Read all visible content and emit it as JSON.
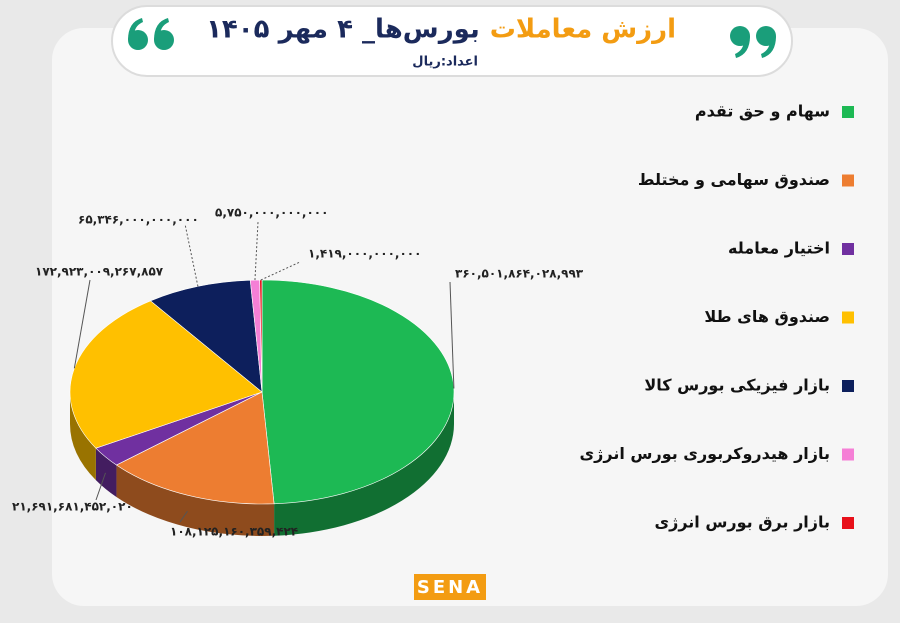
{
  "chart_data": {
    "type": "pie3d",
    "title": [
      "ارزش معاملات",
      "بورس‌ها_ ۴ مهر ۱۴۰۵"
    ],
    "subtitle": "اعداد:ریال",
    "categories": [
      "سهام و حق تقدم",
      "صندوق سهامی و مختلط",
      "اختیار معامله",
      "صندوق های طلا",
      "بازار فیزیکی بورس کالا",
      "بازار هیدروکربوری بورس انرژی",
      "بازار برق بورس انرژی"
    ],
    "values": [
      360501864028993,
      108125160359424,
      21691681452020,
      172923009267857,
      65346000000000,
      5750000000000,
      1419000000000
    ],
    "value_labels": [
      "۳۶۰,۵۰۱,۸۶۴,۰۲۸,۹۹۳",
      "۱۰۸,۱۲۵,۱۶۰,۳۵۹,۴۲۴",
      "۲۱,۶۹۱,۶۸۱,۴۵۲,۰۲۰",
      "۱۷۲,۹۲۳,۰۰۹,۲۶۷,۸۵۷",
      "۶۵,۳۴۶,۰۰۰,۰۰۰,۰۰۰",
      "۵,۷۵۰,۰۰۰,۰۰۰,۰۰۰",
      "۱,۴۱۹,۰۰۰,۰۰۰,۰۰۰"
    ],
    "colors": [
      "#1db954",
      "#ed7d31",
      "#7030a0",
      "#ffc000",
      "#0d1f5c",
      "#f57fd6",
      "#e8101a"
    ],
    "logo": "SENA"
  }
}
